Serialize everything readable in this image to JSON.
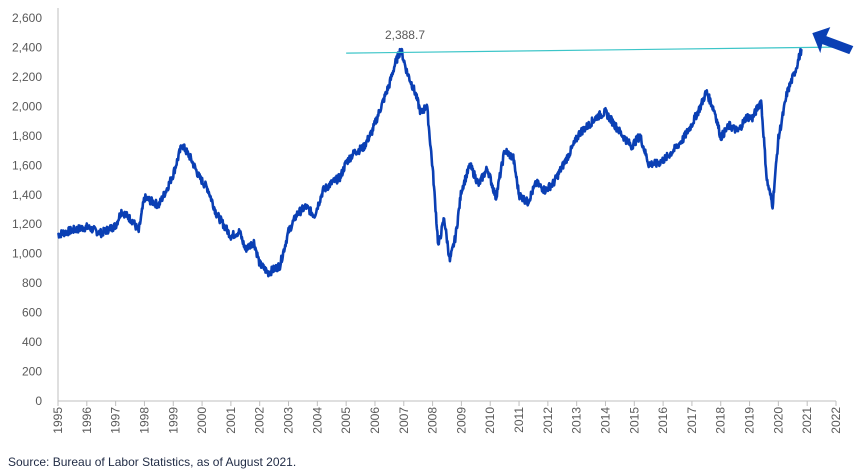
{
  "chart_data": {
    "type": "line",
    "title": "",
    "xlabel": "",
    "ylabel": "",
    "ylim": [
      0,
      2600
    ],
    "xlim": [
      1995,
      2022
    ],
    "y_ticks": [
      "0",
      "200",
      "400",
      "600",
      "800",
      "1,000",
      "1,200",
      "1,400",
      "1,600",
      "1,800",
      "2,000",
      "2,200",
      "2,400",
      "2,600"
    ],
    "x_ticks": [
      "1995",
      "1996",
      "1997",
      "1998",
      "1999",
      "2000",
      "2001",
      "2002",
      "2003",
      "2004",
      "2005",
      "2006",
      "2007",
      "2008",
      "2009",
      "2010",
      "2011",
      "2012",
      "2013",
      "2014",
      "2015",
      "2016",
      "2017",
      "2018",
      "2019",
      "2020",
      "2021",
      "2022"
    ],
    "grid": false,
    "series": [
      {
        "color": "#0a3fb4",
        "x": [
          1995.0,
          1995.5,
          1996.0,
          1996.5,
          1997.0,
          1997.2,
          1997.6,
          1997.8,
          1998.0,
          1998.5,
          1998.8,
          1999.0,
          1999.3,
          1999.6,
          1999.9,
          2000.2,
          2000.5,
          2000.8,
          2001.0,
          2001.3,
          2001.5,
          2001.8,
          2002.0,
          2002.3,
          2002.7,
          2003.0,
          2003.3,
          2003.6,
          2003.9,
          2004.2,
          2004.5,
          2004.8,
          2005.0,
          2005.3,
          2005.6,
          2005.9,
          2006.2,
          2006.5,
          2006.7,
          2006.9,
          2007.1,
          2007.4,
          2007.6,
          2007.8,
          2008.0,
          2008.2,
          2008.4,
          2008.6,
          2008.8,
          2009.0,
          2009.3,
          2009.6,
          2009.9,
          2010.2,
          2010.5,
          2010.8,
          2011.0,
          2011.3,
          2011.6,
          2011.9,
          2012.2,
          2012.5,
          2012.8,
          2013.1,
          2013.4,
          2013.7,
          2014.0,
          2014.3,
          2014.6,
          2014.9,
          2015.2,
          2015.5,
          2015.8,
          2016.1,
          2016.4,
          2016.7,
          2017.0,
          2017.3,
          2017.5,
          2017.8,
          2018.0,
          2018.3,
          2018.6,
          2018.9,
          2019.1,
          2019.4,
          2019.6,
          2019.8,
          2020.0,
          2020.3,
          2020.6,
          2020.8
        ],
        "values": [
          1130,
          1160,
          1180,
          1140,
          1190,
          1290,
          1220,
          1150,
          1380,
          1330,
          1450,
          1540,
          1740,
          1650,
          1520,
          1440,
          1270,
          1180,
          1120,
          1150,
          1030,
          1080,
          930,
          870,
          920,
          1150,
          1270,
          1320,
          1260,
          1430,
          1480,
          1520,
          1620,
          1690,
          1720,
          1830,
          1990,
          2150,
          2290,
          2388.7,
          2240,
          2090,
          1950,
          2010,
          1580,
          1050,
          1240,
          950,
          1120,
          1430,
          1600,
          1470,
          1580,
          1380,
          1700,
          1650,
          1400,
          1350,
          1480,
          1430,
          1480,
          1590,
          1700,
          1820,
          1870,
          1930,
          1960,
          1880,
          1800,
          1730,
          1800,
          1610,
          1610,
          1650,
          1710,
          1780,
          1880,
          2000,
          2100,
          1960,
          1790,
          1870,
          1830,
          1930,
          1920,
          2040,
          1500,
          1330,
          1780,
          2090,
          2250,
          2388.7
        ]
      }
    ],
    "annotations": [
      {
        "text": "2,388.7",
        "type": "reference-line",
        "value": 2388.7,
        "x_start": 2005,
        "x_end": 2021.9,
        "color": "#3cc5c8"
      }
    ],
    "arrow_color": "#0a3fb4"
  },
  "footer": {
    "source": "Source: Bureau of Labor Statistics, as of August 2021."
  }
}
